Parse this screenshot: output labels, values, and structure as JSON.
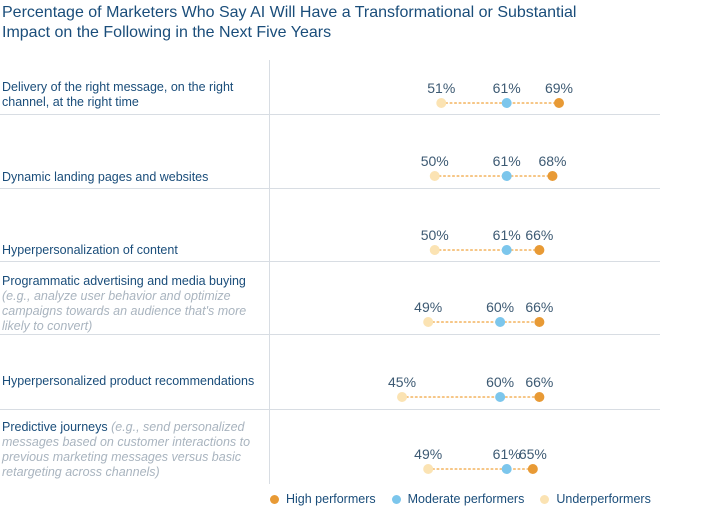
{
  "chart_data": {
    "type": "scatter",
    "title": "Percentage of Marketers Who Say AI Will Have a Transformational or Substantial Impact on the Following in the Next Five Years",
    "unit": "%",
    "categories": [
      {
        "label": "Delivery of the right message, on the right channel, at the right time",
        "sublabel": ""
      },
      {
        "label": "Dynamic landing pages and websites",
        "sublabel": ""
      },
      {
        "label": "Hyperpersonalization of content",
        "sublabel": ""
      },
      {
        "label": "Programmatic advertising and media buying",
        "sublabel": "(e.g., analyze user behavior and optimize campaigns towards an audience that's more likely to convert)"
      },
      {
        "label": "Hyperpersonalized product recommendations",
        "sublabel": ""
      },
      {
        "label": "Predictive journeys",
        "sublabel": "(e.g., send personalized messages based on customer interactions to previous marketing messages versus basic retargeting across channels)"
      }
    ],
    "series": [
      {
        "name": "Underperformers",
        "color": "#fbe3b3",
        "values": [
          51,
          50,
          50,
          49,
          45,
          49
        ]
      },
      {
        "name": "Moderate performers",
        "color": "#7cc6ec",
        "values": [
          61,
          61,
          61,
          60,
          60,
          61
        ]
      },
      {
        "name": "High performers",
        "color": "#e89a35",
        "values": [
          69,
          68,
          66,
          66,
          66,
          65
        ]
      }
    ],
    "legend": {
      "position": "bottom-right",
      "order": [
        "High performers",
        "Moderate performers",
        "Underperformers"
      ]
    },
    "connector_color": "#f3b35e"
  }
}
